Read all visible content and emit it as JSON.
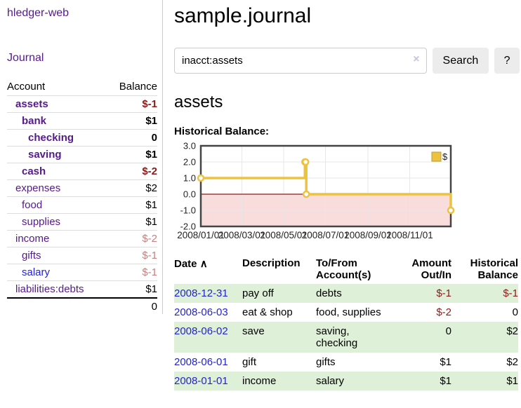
{
  "app": {
    "brand": "hledger-web"
  },
  "sidebar": {
    "journal_label": "Journal",
    "accounts_table": {
      "headers": {
        "account": "Account",
        "balance": "Balance"
      },
      "rows": [
        {
          "account": "assets",
          "depth": 0,
          "bold": true,
          "balance": "$-1",
          "balance_color": "neg_strong",
          "link_color": "purple"
        },
        {
          "account": "bank",
          "depth": 1,
          "bold": true,
          "balance": "$1",
          "balance_color": "text",
          "link_color": "purple"
        },
        {
          "account": "checking",
          "depth": 2,
          "bold": true,
          "balance": "0",
          "balance_color": "text",
          "link_color": "purple"
        },
        {
          "account": "saving",
          "depth": 2,
          "bold": true,
          "balance": "$1",
          "balance_color": "text",
          "link_color": "purple"
        },
        {
          "account": "cash",
          "depth": 1,
          "bold": true,
          "balance": "$-2",
          "balance_color": "neg_strong",
          "link_color": "purple"
        },
        {
          "account": "expenses",
          "depth": 0,
          "bold": false,
          "balance": "$2",
          "balance_color": "text",
          "link_color": "purple"
        },
        {
          "account": "food",
          "depth": 1,
          "bold": false,
          "balance": "$1",
          "balance_color": "text",
          "link_color": "purple"
        },
        {
          "account": "supplies",
          "depth": 1,
          "bold": false,
          "balance": "$1",
          "balance_color": "text",
          "link_color": "purple"
        },
        {
          "account": "income",
          "depth": 0,
          "bold": false,
          "balance": "$-2",
          "balance_color": "neg_muted",
          "link_color": "purple"
        },
        {
          "account": "gifts",
          "depth": 1,
          "bold": false,
          "balance": "$-1",
          "balance_color": "neg_muted",
          "link_color": "purple"
        },
        {
          "account": "salary",
          "depth": 1,
          "bold": false,
          "balance": "$-1",
          "balance_color": "neg_muted",
          "link_color": "blue"
        },
        {
          "account": "liabilities:debts",
          "depth": 0,
          "bold": false,
          "balance": "$1",
          "balance_color": "text",
          "link_color": "purple"
        }
      ],
      "total": "0"
    }
  },
  "main": {
    "title": "sample.journal",
    "search": {
      "value": "inacct:assets",
      "clear_icon": "×",
      "search_button": "Search",
      "help_button": "?"
    },
    "section_title": "assets",
    "chart_label": "Historical Balance:"
  },
  "chart_data": {
    "type": "line",
    "title": "Historical Balance",
    "series": [
      {
        "name": "$",
        "color": "#edc240",
        "step": true,
        "points": [
          [
            "2008-01-01",
            1
          ],
          [
            "2008-06-01",
            2
          ],
          [
            "2008-06-02",
            2
          ],
          [
            "2008-06-03",
            0
          ],
          [
            "2008-12-31",
            -1
          ]
        ]
      }
    ],
    "x_range": [
      "2008-01-01",
      "2008-12-31"
    ],
    "ylim": [
      -2,
      3
    ],
    "y_ticks": [
      "3.0",
      "2.0",
      "1.0",
      "0.0",
      "-1.0",
      "-2.0"
    ],
    "x_ticks": [
      "2008/01/01",
      "2008/03/01",
      "2008/05/01",
      "2008/07/01",
      "2008/09/01",
      "2008/11/01"
    ],
    "legend": {
      "label": "$",
      "position": "top-right"
    },
    "grid": true,
    "negative_region_shaded": true
  },
  "transactions": {
    "headers": {
      "date": "Date",
      "description": "Description",
      "account": "To/From Account(s)",
      "amount": "Amount Out/In",
      "balance": "Historical Balance"
    },
    "sort_indicator": "∧",
    "rows": [
      {
        "date": "2008-12-31",
        "description": "pay off",
        "accounts": "debts",
        "amount": "$-1",
        "balance": "$-1"
      },
      {
        "date": "2008-06-03",
        "description": "eat & shop",
        "accounts": "food, supplies",
        "amount": "$-2",
        "balance": "0"
      },
      {
        "date": "2008-06-02",
        "description": "save",
        "accounts": "saving, checking",
        "amount": "0",
        "balance": "$2"
      },
      {
        "date": "2008-06-01",
        "description": "gift",
        "accounts": "gifts",
        "amount": "$1",
        "balance": "$2"
      },
      {
        "date": "2008-01-01",
        "description": "income",
        "accounts": "salary",
        "amount": "$1",
        "balance": "$1"
      }
    ]
  },
  "colors": {
    "link_purple": "#551a8b",
    "link_blue": "#2323d0",
    "neg_strong": "#8e1a1a",
    "neg_muted": "#c58181",
    "text": "#000000",
    "row_green": "#dff0d8",
    "gold": "#edc240",
    "gold_border": "#bf9d30",
    "negative_region_pink": "#f9dcdc",
    "zero_line": "#8b1a1a",
    "chart_border": "#444444",
    "grid_line": "#e7e7e7"
  }
}
